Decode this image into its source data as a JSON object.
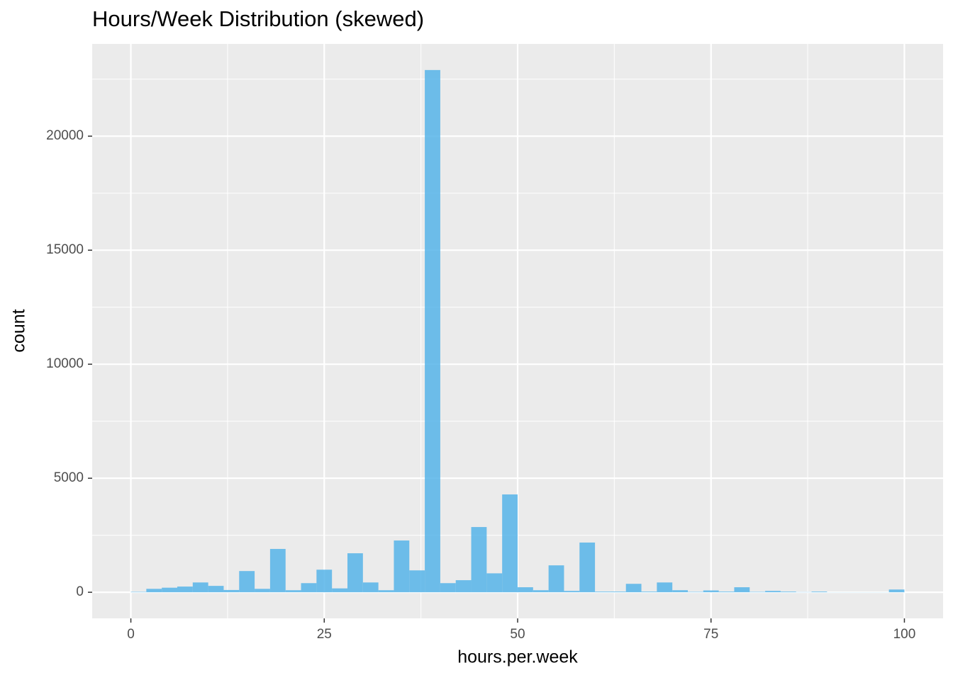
{
  "chart_data": {
    "type": "histogram",
    "title": "Hours/Week Distribution (skewed)",
    "x_label": "hours.per.week",
    "y_label": "count",
    "bins": [
      0,
      2,
      4,
      6,
      8,
      10,
      12,
      14,
      16,
      18,
      20,
      22,
      24,
      26,
      28,
      30,
      32,
      34,
      36,
      38,
      40,
      42,
      44,
      46,
      48,
      50,
      52,
      54,
      56,
      58,
      60,
      62,
      64,
      66,
      68,
      70,
      72,
      74,
      76,
      78,
      80,
      82,
      84,
      86,
      88,
      90,
      92,
      94,
      96,
      98,
      100
    ],
    "values": [
      20,
      150,
      200,
      250,
      430,
      280,
      100,
      930,
      150,
      1900,
      90,
      400,
      990,
      170,
      1710,
      430,
      90,
      2270,
      960,
      22900,
      400,
      530,
      2860,
      830,
      4290,
      220,
      90,
      1180,
      60,
      2180,
      30,
      30,
      370,
      30,
      430,
      90,
      20,
      80,
      30,
      220,
      20,
      60,
      30,
      10,
      30,
      5,
      5,
      5,
      5,
      120
    ],
    "color": "#56B4E9",
    "xlim": [
      -5,
      105
    ],
    "xticks": [
      0,
      25,
      50,
      75,
      100
    ],
    "xminor": [
      12.5,
      37.5,
      62.5,
      87.5
    ],
    "ylim": [
      -1145,
      24045
    ],
    "yticks": [
      0,
      5000,
      10000,
      15000,
      20000
    ],
    "yminor": [
      2500,
      7500,
      12500,
      17500,
      22500
    ],
    "grid": true
  }
}
